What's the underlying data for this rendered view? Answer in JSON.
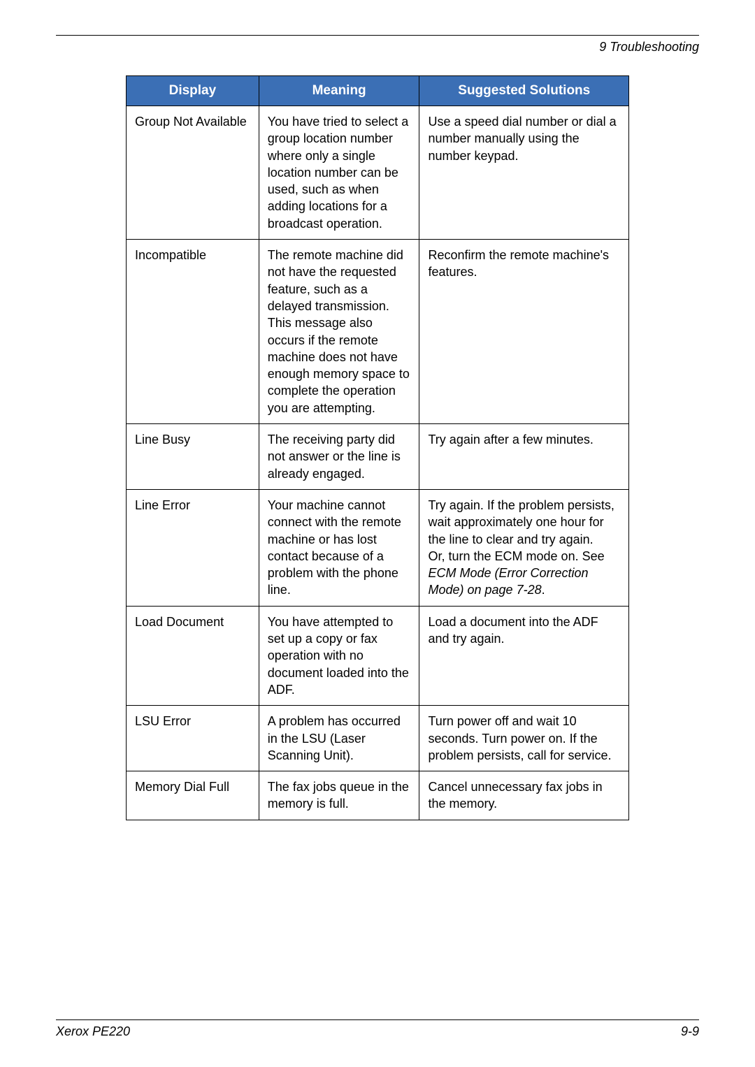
{
  "header": {
    "chapter": "9   Troubleshooting"
  },
  "table": {
    "header_bg": "#3b6fb5",
    "header_fg": "#ffffff",
    "border_color": "#000000",
    "columns": [
      "Display",
      "Meaning",
      "Suggested Solutions"
    ],
    "rows": [
      {
        "display": "Group Not Available",
        "meaning": "You have tried to select a group location number where only a single location number can be used, such as when adding locations for a broadcast operation.",
        "solution": "Use a speed dial number or dial a number manually using the number keypad."
      },
      {
        "display": "Incompatible",
        "meaning": "The remote machine did not have the requested feature, such as a delayed transmission.\nThis message also occurs if the remote machine does not have enough memory space to complete the operation you are attempting.",
        "solution": "Reconfirm the remote machine's features."
      },
      {
        "display": "Line Busy",
        "meaning": "The receiving party did not answer or the line is already engaged.",
        "solution": "Try again after a few minutes."
      },
      {
        "display": "Line Error",
        "meaning": "Your machine cannot connect with the remote machine or has lost contact because of a problem with the phone line.",
        "solution_plain": "Try again. If the problem persists, wait approximately one hour for the line to clear and try again.\nOr, turn the ECM mode on. See ",
        "solution_italic": "ECM Mode (Error Correction Mode) on page 7-28",
        "solution_tail": "."
      },
      {
        "display": "Load Document",
        "meaning": "You have attempted to set up a copy or fax operation with no document loaded into the ADF.",
        "solution": "Load a document into the ADF and try again."
      },
      {
        "display": "LSU Error",
        "meaning": "A problem has occurred in the LSU (Laser Scanning Unit).",
        "solution": "Turn power off and wait 10 seconds.  Turn power on.  If the problem persists, call for service."
      },
      {
        "display": "Memory Dial Full",
        "meaning": "The fax jobs queue in the memory is full.",
        "solution": "Cancel unnecessary fax jobs in the memory."
      }
    ]
  },
  "footer": {
    "left": "Xerox PE220",
    "right": "9-9"
  }
}
